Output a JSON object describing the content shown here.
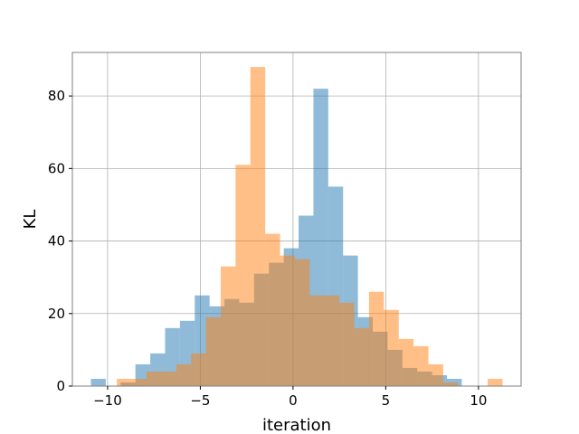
{
  "chart_data": {
    "type": "bar",
    "subtype": "overlapping-histogram",
    "title": "",
    "xlabel": "iteration",
    "ylabel": "KL",
    "xlim": [
      -11.9,
      12.3
    ],
    "ylim": [
      0,
      92
    ],
    "xticks": [
      -10,
      -5,
      0,
      5,
      10
    ],
    "xtick_labels": [
      "−10",
      "−5",
      "0",
      "5",
      "10"
    ],
    "yticks": [
      0,
      20,
      40,
      60,
      80
    ],
    "ytick_labels": [
      "0",
      "20",
      "40",
      "60",
      "80"
    ],
    "grid": true,
    "legend": "none",
    "series": [
      {
        "color": "#1f77b4",
        "alpha": 0.5,
        "bins": [
          {
            "x0": -10.9,
            "x1": -10.1,
            "count": 2
          },
          {
            "x0": -10.1,
            "x1": -9.3,
            "count": 0
          },
          {
            "x0": -9.3,
            "x1": -8.5,
            "count": 1
          },
          {
            "x0": -8.5,
            "x1": -7.7,
            "count": 6
          },
          {
            "x0": -7.7,
            "x1": -6.9,
            "count": 9
          },
          {
            "x0": -6.9,
            "x1": -6.1,
            "count": 16
          },
          {
            "x0": -6.1,
            "x1": -5.3,
            "count": 18
          },
          {
            "x0": -5.3,
            "x1": -4.5,
            "count": 25
          },
          {
            "x0": -4.5,
            "x1": -3.7,
            "count": 22
          },
          {
            "x0": -3.7,
            "x1": -2.9,
            "count": 24
          },
          {
            "x0": -2.9,
            "x1": -2.1,
            "count": 23
          },
          {
            "x0": -2.1,
            "x1": -1.3,
            "count": 31
          },
          {
            "x0": -1.3,
            "x1": -0.5,
            "count": 34
          },
          {
            "x0": -0.5,
            "x1": 0.3,
            "count": 38
          },
          {
            "x0": 0.3,
            "x1": 1.1,
            "count": 47
          },
          {
            "x0": 1.1,
            "x1": 1.9,
            "count": 82
          },
          {
            "x0": 1.9,
            "x1": 2.7,
            "count": 55
          },
          {
            "x0": 2.7,
            "x1": 3.5,
            "count": 36
          },
          {
            "x0": 3.5,
            "x1": 4.3,
            "count": 19
          },
          {
            "x0": 4.3,
            "x1": 5.1,
            "count": 15
          },
          {
            "x0": 5.1,
            "x1": 5.9,
            "count": 10
          },
          {
            "x0": 5.9,
            "x1": 6.7,
            "count": 5
          },
          {
            "x0": 6.7,
            "x1": 7.5,
            "count": 4
          },
          {
            "x0": 7.5,
            "x1": 8.3,
            "count": 3
          },
          {
            "x0": 8.3,
            "x1": 9.1,
            "count": 2
          }
        ]
      },
      {
        "color": "#ff7f0e",
        "alpha": 0.5,
        "bins": [
          {
            "x0": -9.5,
            "x1": -8.7,
            "count": 2
          },
          {
            "x0": -8.7,
            "x1": -7.9,
            "count": 2
          },
          {
            "x0": -7.9,
            "x1": -7.1,
            "count": 4
          },
          {
            "x0": -7.1,
            "x1": -6.3,
            "count": 4
          },
          {
            "x0": -6.3,
            "x1": -5.5,
            "count": 6
          },
          {
            "x0": -5.5,
            "x1": -4.7,
            "count": 9
          },
          {
            "x0": -4.7,
            "x1": -3.9,
            "count": 19
          },
          {
            "x0": -3.9,
            "x1": -3.1,
            "count": 33
          },
          {
            "x0": -3.1,
            "x1": -2.3,
            "count": 61
          },
          {
            "x0": -2.3,
            "x1": -1.5,
            "count": 88
          },
          {
            "x0": -1.5,
            "x1": -0.7,
            "count": 42
          },
          {
            "x0": -0.7,
            "x1": 0.1,
            "count": 36
          },
          {
            "x0": 0.1,
            "x1": 0.9,
            "count": 35
          },
          {
            "x0": 0.9,
            "x1": 1.7,
            "count": 25
          },
          {
            "x0": 1.7,
            "x1": 2.5,
            "count": 25
          },
          {
            "x0": 2.5,
            "x1": 3.3,
            "count": 23
          },
          {
            "x0": 3.3,
            "x1": 4.1,
            "count": 16
          },
          {
            "x0": 4.1,
            "x1": 4.9,
            "count": 26
          },
          {
            "x0": 4.9,
            "x1": 5.7,
            "count": 21
          },
          {
            "x0": 5.7,
            "x1": 6.5,
            "count": 13
          },
          {
            "x0": 6.5,
            "x1": 7.3,
            "count": 11
          },
          {
            "x0": 7.3,
            "x1": 8.1,
            "count": 6
          },
          {
            "x0": 8.1,
            "x1": 8.9,
            "count": 1
          },
          {
            "x0": 8.9,
            "x1": 9.7,
            "count": 0
          },
          {
            "x0": 9.7,
            "x1": 10.5,
            "count": 0
          },
          {
            "x0": 10.5,
            "x1": 11.3,
            "count": 2
          }
        ]
      }
    ]
  }
}
